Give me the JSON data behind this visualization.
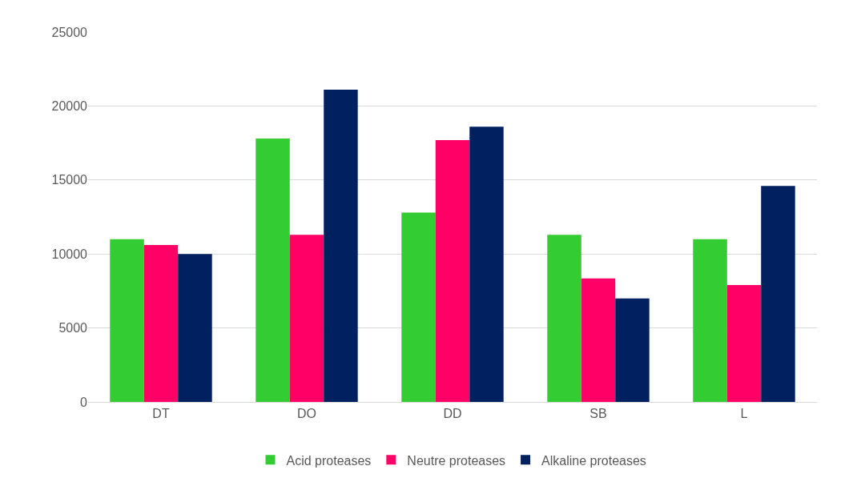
{
  "chart_data": {
    "type": "bar",
    "categories": [
      "DT",
      "DO",
      "DD",
      "SB",
      "L"
    ],
    "series": [
      {
        "name": "Acid proteases",
        "color": "#33cc33",
        "values": [
          11000,
          17800,
          12800,
          11300,
          11000
        ]
      },
      {
        "name": "Neutre proteases",
        "color": "#ff0066",
        "values": [
          10600,
          11300,
          17700,
          8350,
          7900
        ]
      },
      {
        "name": "Alkaline proteases",
        "color": "#002060",
        "values": [
          10000,
          21100,
          18600,
          7000,
          14600
        ]
      }
    ],
    "ylim": [
      0,
      25000
    ],
    "yticks": [
      0,
      5000,
      10000,
      15000,
      20000,
      25000
    ],
    "grid": "y",
    "legend": "bottom"
  }
}
